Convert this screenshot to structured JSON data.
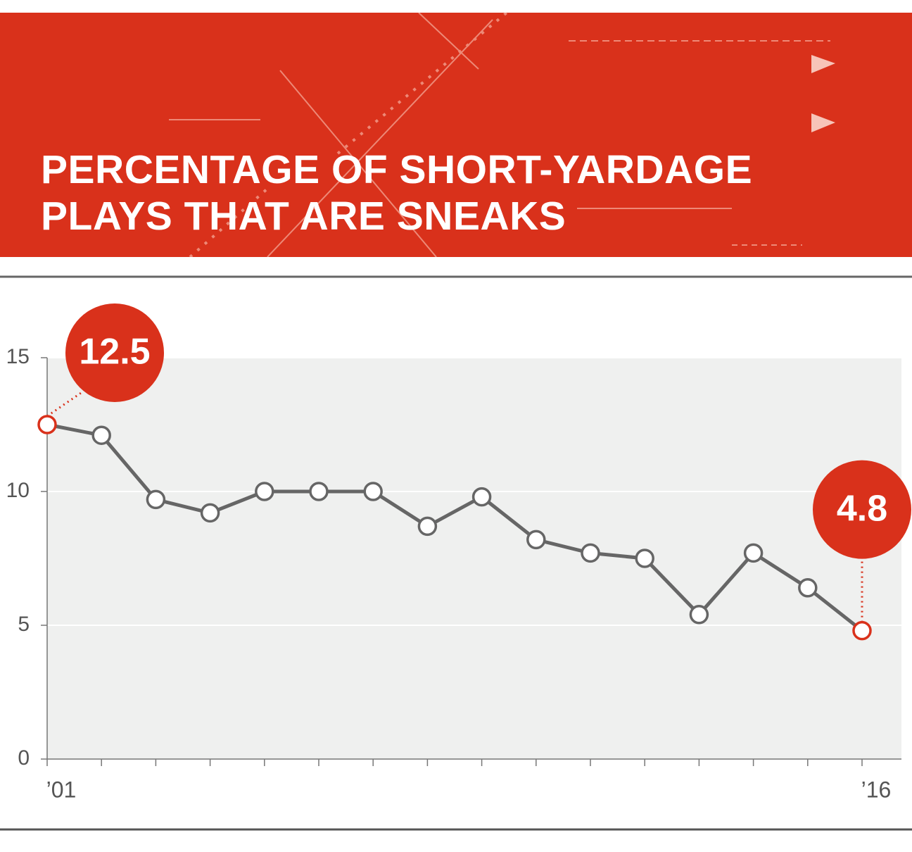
{
  "chart_data": {
    "type": "line",
    "title": "PERCENTAGE OF SHORT-YARDAGE PLAYS THAT ARE SNEAKS",
    "categories": [
      "’01",
      null,
      null,
      null,
      null,
      null,
      null,
      null,
      null,
      null,
      null,
      null,
      null,
      null,
      null,
      "’16"
    ],
    "series": [
      {
        "color": "#666666",
        "values": [
          12.5,
          12.1,
          9.7,
          9.2,
          10.0,
          10.0,
          10.0,
          8.7,
          9.8,
          8.2,
          7.7,
          7.5,
          5.4,
          7.7,
          6.4,
          4.8
        ],
        "value_labels": [
          "12.5",
          null,
          null,
          null,
          null,
          null,
          null,
          null,
          null,
          null,
          null,
          null,
          null,
          null,
          null,
          "4.8"
        ]
      }
    ],
    "highlight_color": "#d9311b",
    "ylim": [
      0,
      15
    ],
    "yticks": [
      0,
      5,
      10,
      15
    ],
    "grid": true
  }
}
